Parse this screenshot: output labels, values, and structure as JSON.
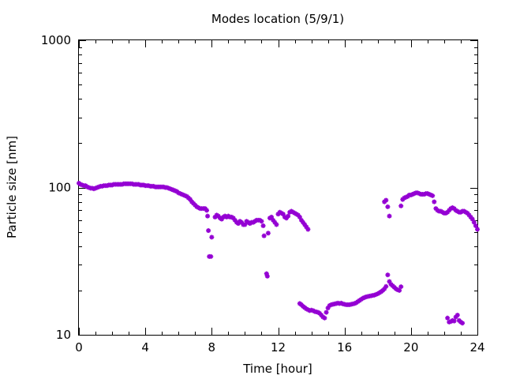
{
  "chart_data": {
    "type": "scatter",
    "title": "Modes location (5/9/1)",
    "xlabel": "Time [hour]",
    "ylabel": "Particle size [nm]",
    "xlim": [
      0,
      24
    ],
    "ylim": [
      10,
      1000
    ],
    "y_scale": "log",
    "grid": false,
    "legend": "none",
    "x_ticks": [
      0,
      4,
      8,
      12,
      16,
      20,
      24
    ],
    "x_tick_labels": [
      "0",
      "4",
      "8",
      "12",
      "16",
      "20",
      "24"
    ],
    "y_ticks": [
      10,
      100,
      1000
    ],
    "y_tick_labels": [
      "10",
      "100",
      "1000"
    ],
    "marker": "star",
    "series": [
      {
        "color": "#9400d3",
        "points": [
          [
            0.0,
            107
          ],
          [
            0.1,
            105
          ],
          [
            0.2,
            104
          ],
          [
            0.3,
            103
          ],
          [
            0.4,
            103
          ],
          [
            0.5,
            101
          ],
          [
            0.6,
            100
          ],
          [
            0.7,
            99
          ],
          [
            0.8,
            99
          ],
          [
            0.9,
            98
          ],
          [
            1.0,
            99
          ],
          [
            1.1,
            100
          ],
          [
            1.2,
            101
          ],
          [
            1.3,
            102
          ],
          [
            1.4,
            102
          ],
          [
            1.5,
            103
          ],
          [
            1.6,
            103
          ],
          [
            1.7,
            103
          ],
          [
            1.8,
            104
          ],
          [
            1.9,
            104
          ],
          [
            2.0,
            104
          ],
          [
            2.1,
            105
          ],
          [
            2.2,
            105
          ],
          [
            2.3,
            105
          ],
          [
            2.4,
            105
          ],
          [
            2.5,
            105
          ],
          [
            2.6,
            105
          ],
          [
            2.7,
            106
          ],
          [
            2.8,
            106
          ],
          [
            2.9,
            106
          ],
          [
            3.0,
            106
          ],
          [
            3.1,
            106
          ],
          [
            3.2,
            106
          ],
          [
            3.3,
            105
          ],
          [
            3.4,
            105
          ],
          [
            3.5,
            105
          ],
          [
            3.6,
            105
          ],
          [
            3.7,
            104
          ],
          [
            3.8,
            104
          ],
          [
            3.9,
            104
          ],
          [
            4.0,
            103
          ],
          [
            4.1,
            103
          ],
          [
            4.2,
            103
          ],
          [
            4.3,
            102
          ],
          [
            4.4,
            102
          ],
          [
            4.5,
            102
          ],
          [
            4.6,
            101
          ],
          [
            4.7,
            101
          ],
          [
            4.8,
            101
          ],
          [
            4.9,
            101
          ],
          [
            5.0,
            101
          ],
          [
            5.1,
            101
          ],
          [
            5.2,
            100
          ],
          [
            5.3,
            100
          ],
          [
            5.4,
            99
          ],
          [
            5.5,
            98
          ],
          [
            5.6,
            97
          ],
          [
            5.7,
            96
          ],
          [
            5.8,
            95
          ],
          [
            5.9,
            94
          ],
          [
            6.0,
            92
          ],
          [
            6.1,
            91
          ],
          [
            6.2,
            90
          ],
          [
            6.3,
            89
          ],
          [
            6.4,
            88
          ],
          [
            6.5,
            87
          ],
          [
            6.6,
            85
          ],
          [
            6.7,
            83
          ],
          [
            6.8,
            80
          ],
          [
            6.9,
            78
          ],
          [
            7.0,
            76
          ],
          [
            7.1,
            74
          ],
          [
            7.2,
            73
          ],
          [
            7.3,
            72
          ],
          [
            7.4,
            72
          ],
          [
            7.5,
            72
          ],
          [
            7.6,
            72
          ],
          [
            7.7,
            70
          ],
          [
            7.75,
            64
          ],
          [
            7.8,
            51
          ],
          [
            7.85,
            34
          ],
          [
            7.95,
            34
          ],
          [
            8.0,
            46
          ],
          [
            8.2,
            63
          ],
          [
            8.3,
            65
          ],
          [
            8.4,
            64
          ],
          [
            8.5,
            62
          ],
          [
            8.6,
            61
          ],
          [
            8.7,
            63
          ],
          [
            8.8,
            64
          ],
          [
            8.9,
            63
          ],
          [
            9.0,
            64
          ],
          [
            9.1,
            63
          ],
          [
            9.2,
            63
          ],
          [
            9.3,
            62
          ],
          [
            9.4,
            60
          ],
          [
            9.5,
            58
          ],
          [
            9.6,
            57
          ],
          [
            9.7,
            59
          ],
          [
            9.8,
            58
          ],
          [
            9.9,
            56
          ],
          [
            10.0,
            56
          ],
          [
            10.1,
            59
          ],
          [
            10.2,
            58
          ],
          [
            10.3,
            57
          ],
          [
            10.4,
            58
          ],
          [
            10.5,
            58
          ],
          [
            10.6,
            59
          ],
          [
            10.7,
            60
          ],
          [
            10.8,
            60
          ],
          [
            10.9,
            60
          ],
          [
            11.0,
            59
          ],
          [
            11.1,
            55
          ],
          [
            11.15,
            47
          ],
          [
            11.3,
            26
          ],
          [
            11.35,
            25
          ],
          [
            11.4,
            49
          ],
          [
            11.5,
            62
          ],
          [
            11.6,
            63
          ],
          [
            11.7,
            60
          ],
          [
            11.8,
            58
          ],
          [
            11.9,
            56
          ],
          [
            12.0,
            66
          ],
          [
            12.1,
            68
          ],
          [
            12.2,
            67
          ],
          [
            12.3,
            66
          ],
          [
            12.4,
            63
          ],
          [
            12.5,
            62
          ],
          [
            12.6,
            64
          ],
          [
            12.7,
            68
          ],
          [
            12.8,
            69
          ],
          [
            12.9,
            68
          ],
          [
            13.0,
            67
          ],
          [
            13.1,
            66
          ],
          [
            13.2,
            65
          ],
          [
            13.3,
            63
          ],
          [
            13.4,
            60
          ],
          [
            13.5,
            58
          ],
          [
            13.6,
            56
          ],
          [
            13.7,
            54
          ],
          [
            13.8,
            52
          ],
          [
            13.3,
            16.3
          ],
          [
            13.4,
            16.0
          ],
          [
            13.5,
            15.6
          ],
          [
            13.6,
            15.3
          ],
          [
            13.7,
            15.0
          ],
          [
            13.8,
            14.8
          ],
          [
            13.9,
            14.6
          ],
          [
            14.0,
            14.7
          ],
          [
            14.1,
            14.6
          ],
          [
            14.2,
            14.4
          ],
          [
            14.3,
            14.3
          ],
          [
            14.4,
            14.2
          ],
          [
            14.5,
            14.0
          ],
          [
            14.6,
            13.6
          ],
          [
            14.7,
            13.2
          ],
          [
            14.8,
            13.0
          ],
          [
            14.9,
            14.2
          ],
          [
            15.0,
            15.2
          ],
          [
            15.1,
            15.8
          ],
          [
            15.2,
            16.0
          ],
          [
            15.3,
            16.1
          ],
          [
            15.4,
            16.2
          ],
          [
            15.5,
            16.3
          ],
          [
            15.6,
            16.4
          ],
          [
            15.7,
            16.3
          ],
          [
            15.8,
            16.4
          ],
          [
            15.9,
            16.2
          ],
          [
            16.0,
            16.1
          ],
          [
            16.1,
            16.0
          ],
          [
            16.2,
            16.0
          ],
          [
            16.3,
            16.0
          ],
          [
            16.4,
            16.1
          ],
          [
            16.5,
            16.2
          ],
          [
            16.6,
            16.3
          ],
          [
            16.7,
            16.5
          ],
          [
            16.8,
            16.8
          ],
          [
            16.9,
            17.1
          ],
          [
            17.0,
            17.4
          ],
          [
            17.1,
            17.7
          ],
          [
            17.2,
            17.9
          ],
          [
            17.3,
            18.1
          ],
          [
            17.4,
            18.2
          ],
          [
            17.5,
            18.3
          ],
          [
            17.6,
            18.4
          ],
          [
            17.7,
            18.5
          ],
          [
            17.8,
            18.6
          ],
          [
            17.9,
            18.8
          ],
          [
            18.0,
            19.0
          ],
          [
            18.1,
            19.3
          ],
          [
            18.2,
            19.6
          ],
          [
            18.3,
            20.0
          ],
          [
            18.4,
            20.5
          ],
          [
            18.5,
            21.3
          ],
          [
            18.6,
            25.5
          ],
          [
            18.7,
            23.0
          ],
          [
            18.8,
            22.0
          ],
          [
            18.9,
            21.5
          ],
          [
            19.0,
            21.0
          ],
          [
            19.1,
            20.5
          ],
          [
            19.2,
            20.2
          ],
          [
            19.3,
            20.0
          ],
          [
            19.4,
            21.2
          ],
          [
            18.4,
            80
          ],
          [
            18.5,
            82
          ],
          [
            18.6,
            74
          ],
          [
            18.7,
            64
          ],
          [
            19.4,
            75
          ],
          [
            19.5,
            83
          ],
          [
            19.6,
            85
          ],
          [
            19.7,
            86
          ],
          [
            19.8,
            87
          ],
          [
            19.9,
            89
          ],
          [
            20.0,
            89
          ],
          [
            20.1,
            90
          ],
          [
            20.2,
            91
          ],
          [
            20.3,
            92
          ],
          [
            20.4,
            92
          ],
          [
            20.5,
            91
          ],
          [
            20.6,
            90
          ],
          [
            20.7,
            90
          ],
          [
            20.8,
            90
          ],
          [
            20.9,
            91
          ],
          [
            21.0,
            91
          ],
          [
            21.1,
            90
          ],
          [
            21.2,
            89
          ],
          [
            21.3,
            88
          ],
          [
            21.4,
            80
          ],
          [
            21.5,
            72
          ],
          [
            21.6,
            70
          ],
          [
            21.7,
            69
          ],
          [
            21.8,
            69
          ],
          [
            21.9,
            68
          ],
          [
            22.0,
            67
          ],
          [
            22.1,
            67
          ],
          [
            22.2,
            68
          ],
          [
            22.3,
            70
          ],
          [
            22.4,
            72
          ],
          [
            22.5,
            73
          ],
          [
            22.6,
            72
          ],
          [
            22.7,
            70
          ],
          [
            22.8,
            69
          ],
          [
            22.9,
            68
          ],
          [
            23.0,
            68
          ],
          [
            23.1,
            69
          ],
          [
            23.2,
            69
          ],
          [
            23.3,
            68
          ],
          [
            23.4,
            67
          ],
          [
            23.5,
            65
          ],
          [
            23.6,
            63
          ],
          [
            23.7,
            61
          ],
          [
            23.8,
            58
          ],
          [
            23.9,
            55
          ],
          [
            24.0,
            52
          ],
          [
            22.2,
            13.0
          ],
          [
            22.3,
            12.2
          ],
          [
            22.4,
            12.3
          ],
          [
            22.5,
            12.5
          ],
          [
            22.6,
            12.4
          ],
          [
            22.7,
            13.2
          ],
          [
            22.8,
            13.6
          ],
          [
            22.9,
            12.5
          ],
          [
            23.0,
            12.2
          ],
          [
            23.1,
            12.0
          ]
        ]
      }
    ]
  }
}
